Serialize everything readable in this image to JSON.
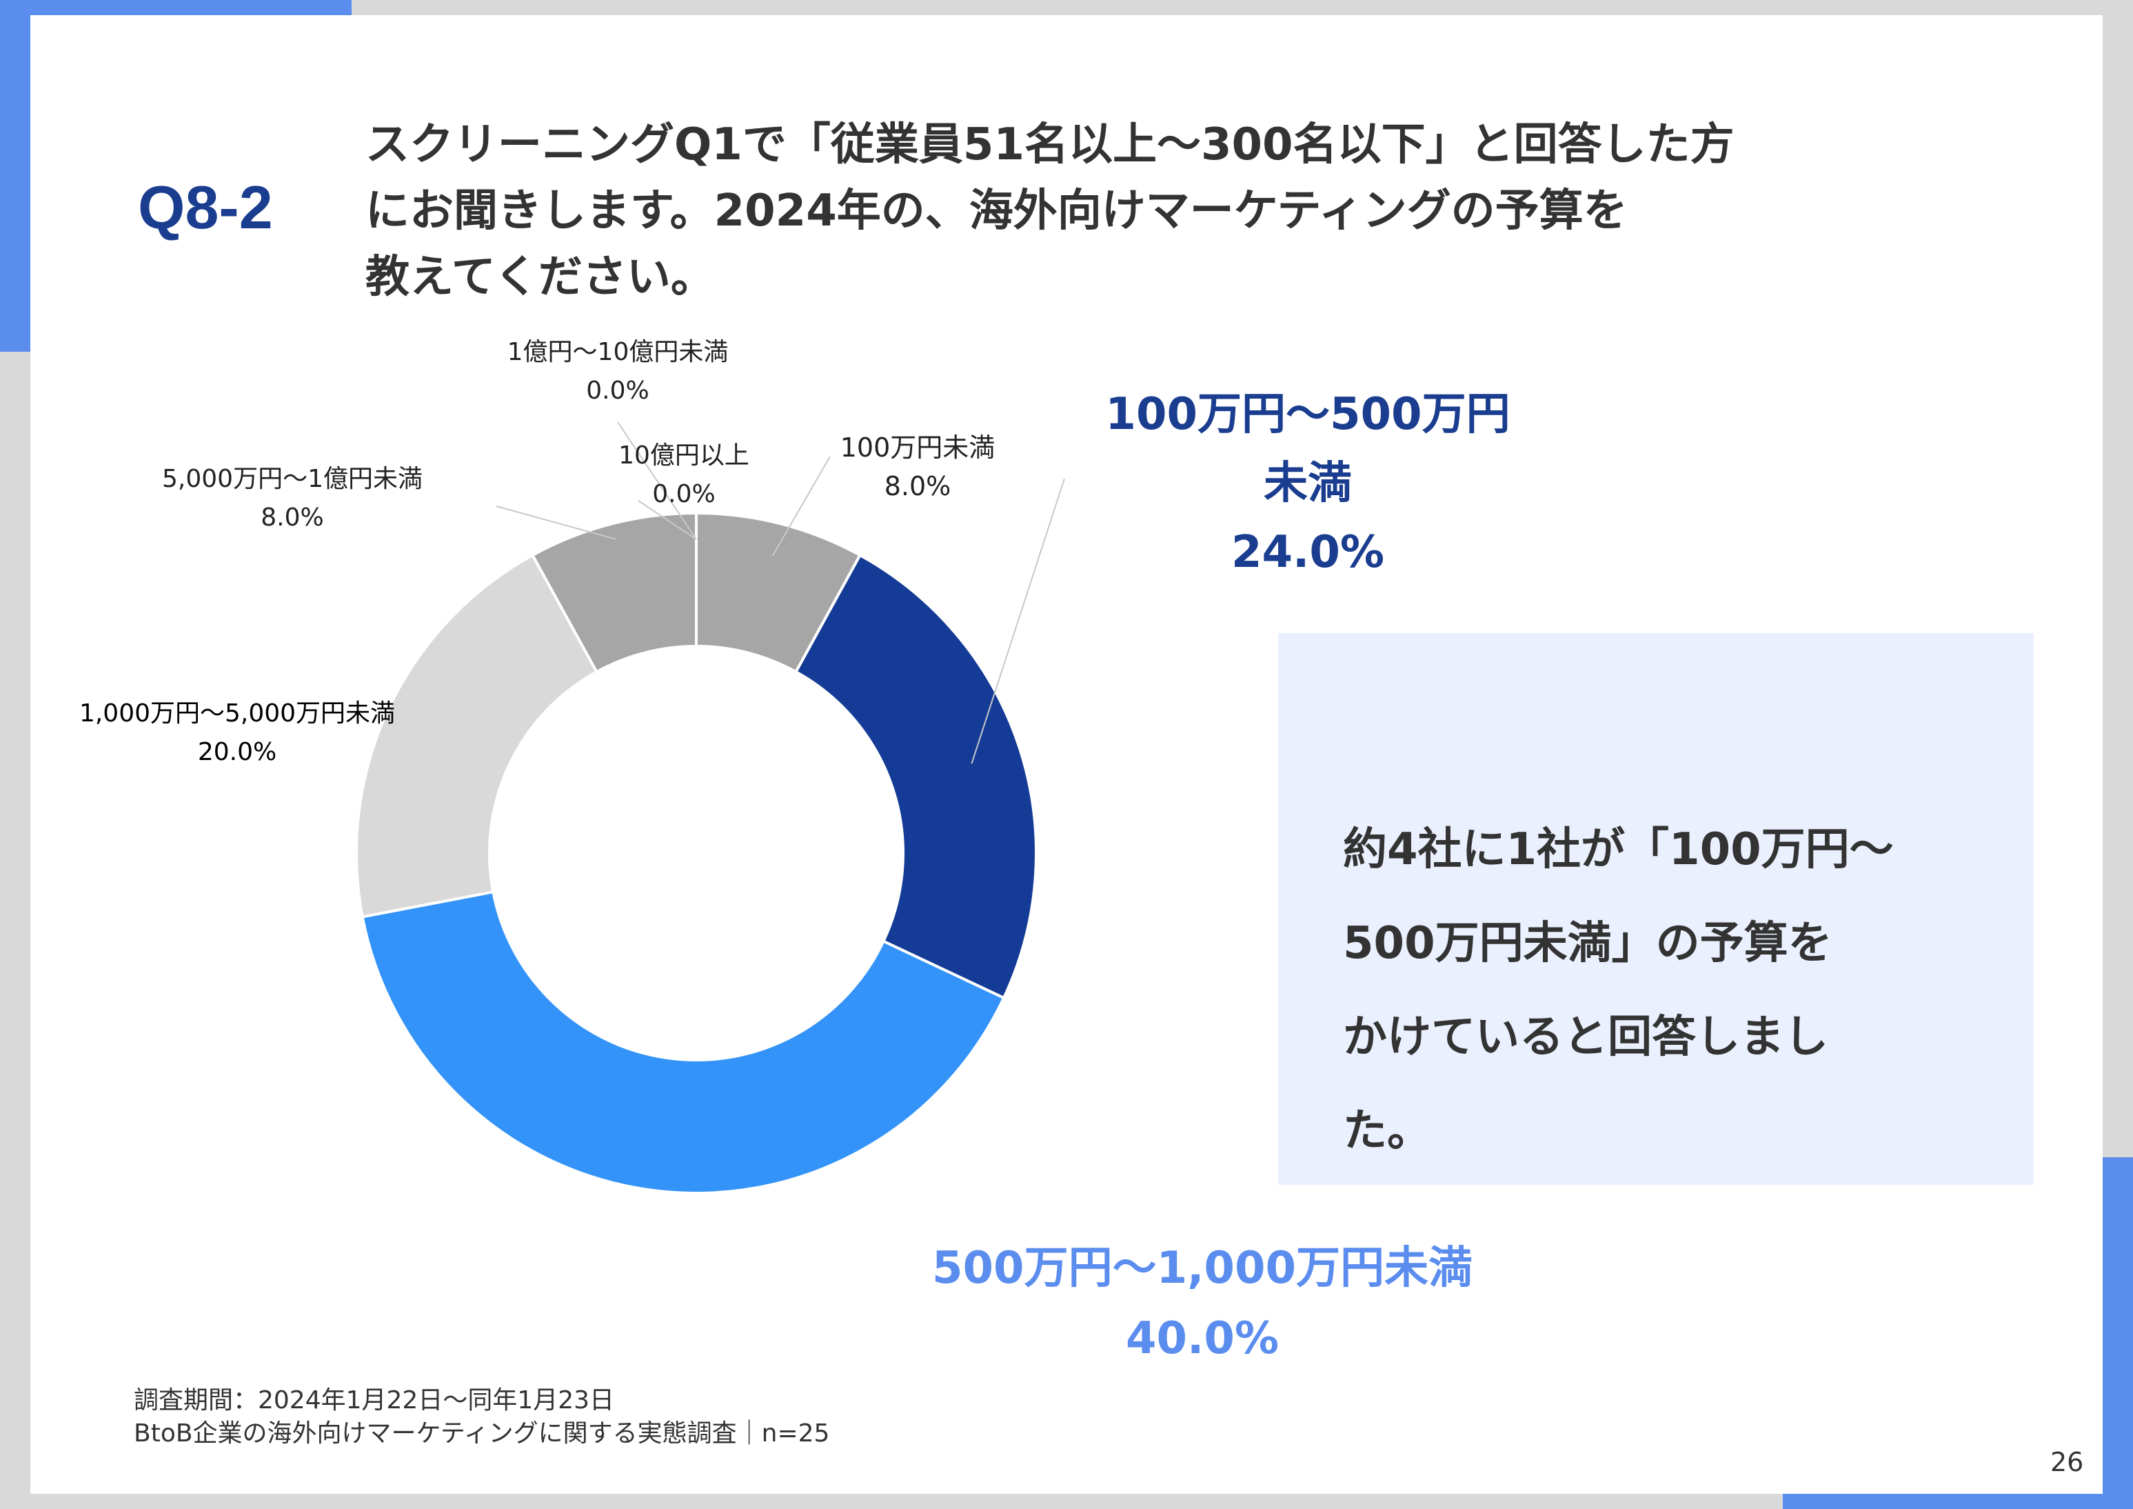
{
  "question": {
    "number": "Q8-2",
    "lines": [
      "スクリーニングQ1で「従業員51名以上〜300名以下」と回答した方",
      "にお聞きします。2024年の、海外向けマーケティングの予算を",
      "教えてください。"
    ]
  },
  "chart_data": {
    "type": "pie",
    "variant": "donut",
    "unit": "%",
    "slices": [
      {
        "label": "100万円未満",
        "value": 8.0,
        "value_label": "8.0%",
        "color": "#a6a6a6",
        "label_style": "normal"
      },
      {
        "label": "100万円〜500万円未満",
        "value": 24.0,
        "value_label": "24.0%",
        "color": "#143c96",
        "label_style": "emphasis-dark"
      },
      {
        "label": "500万円〜1,000万円未満",
        "value": 40.0,
        "value_label": "40.0%",
        "color": "#3393f8",
        "label_style": "emphasis-light"
      },
      {
        "label": "1,000万円〜5,000万円未満",
        "value": 20.0,
        "value_label": "20.0%",
        "color": "#d9d9d9",
        "label_style": "normal"
      },
      {
        "label": "5,000万円〜1億円未満",
        "value": 8.0,
        "value_label": "8.0%",
        "color": "#a6a6a6",
        "label_style": "normal"
      },
      {
        "label": "1億円〜10億円未満",
        "value": 0.0,
        "value_label": "0.0%",
        "color": "#8c8c8c",
        "label_style": "normal"
      },
      {
        "label": "10億円以上",
        "value": 0.0,
        "value_label": "0.0%",
        "color": "#7f7f7f",
        "label_style": "normal"
      }
    ],
    "label_display": [
      [
        "100万円未満",
        "8.0%"
      ],
      [
        "100万円〜500万円",
        "未満",
        "24.0%"
      ],
      [
        "500万円〜1,000万円未満",
        "40.0%"
      ],
      [
        "1,000万円〜5,000万円未満",
        "20.0%"
      ],
      [
        "5,000万円〜1億円未満",
        "8.0%"
      ],
      [
        "1億円〜10億円未満",
        "0.0%"
      ],
      [
        "10億円以上",
        "0.0%"
      ]
    ],
    "legend": "none"
  },
  "callout": {
    "lines": [
      "約4社に1社が「100万円〜",
      "500万円未満」の予算を",
      "かけていると回答しまし",
      "た。"
    ]
  },
  "footnote": {
    "period": "調査期間：2024年1月22日〜同年1月23日",
    "source": "BtoB企業の海外向けマーケティングに関する実態調査｜n=25"
  },
  "page_number": "26",
  "colors": {
    "accent": "#5b8def",
    "title": "#1a3d8f",
    "callout_bg": "#eaf0fd"
  }
}
